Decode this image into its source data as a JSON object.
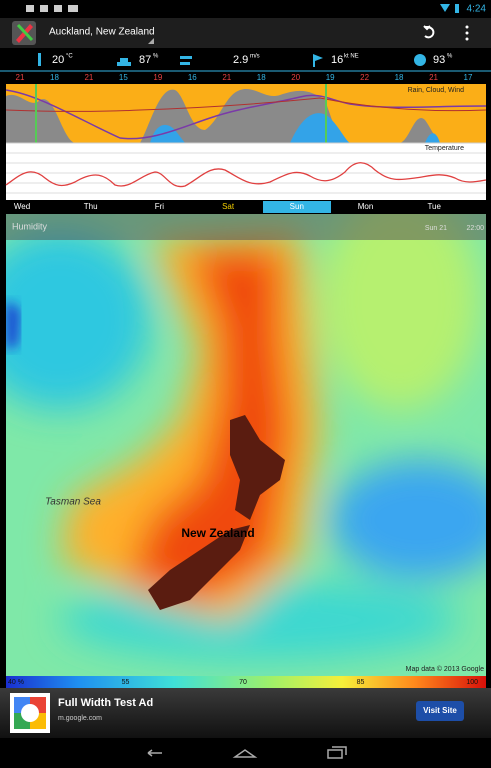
{
  "status_bar": {
    "time": "4:24"
  },
  "app_bar": {
    "location": "Auckland, New Zealand"
  },
  "current": [
    {
      "value": "20",
      "unit": "°C"
    },
    {
      "value": "87",
      "unit": "%"
    },
    {
      "value": "2.9",
      "unit": "m/s"
    },
    {
      "value": "16",
      "unit": "kt NE"
    },
    {
      "value": "93",
      "unit": "%"
    }
  ],
  "forecast": {
    "hours": [
      "21",
      "18",
      "21",
      "15",
      "19",
      "16",
      "21",
      "18",
      "20",
      "19",
      "22",
      "18",
      "21",
      "17"
    ],
    "rain_label": "Rain, Cloud, Wind",
    "temperature_label": "Temperature",
    "days": [
      "Wed",
      "Thu",
      "Fri",
      "Sat",
      "Sun",
      "Mon",
      "Tue"
    ]
  },
  "map": {
    "layer": "Humidity",
    "day": "Sun 21",
    "time": "22:00",
    "labels": [
      "Tasman Sea",
      "New Zealand"
    ],
    "attribution": "Map data © 2013 Google",
    "legend": [
      "40 %",
      "55",
      "70",
      "85",
      "100"
    ]
  },
  "ad": {
    "title": "Full Width Test Ad",
    "url": "m.google.com",
    "button": "Visit Site"
  }
}
